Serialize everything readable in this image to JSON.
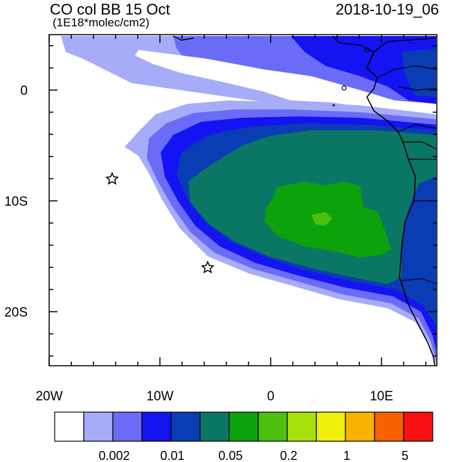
{
  "header": {
    "title": "CO col BB 15 Oct",
    "units": "(1E18*molec/cm2)",
    "datetime": "2018-10-19_06"
  },
  "axes": {
    "x_ticks": [
      "20W",
      "10W",
      "0",
      "10E"
    ],
    "y_ticks": [
      "0",
      "10S",
      "20S"
    ]
  },
  "colorbar": {
    "colors": [
      "#ffffff",
      "#a6acf8",
      "#6a6cf8",
      "#1414f2",
      "#0a3cb4",
      "#0a7764",
      "#0ca20c",
      "#4cc00c",
      "#a8e00c",
      "#f0f00c",
      "#f8b200",
      "#f86000",
      "#f81010"
    ],
    "labels": [
      "0.002",
      "0.01",
      "0.05",
      "0.2",
      "1",
      "5"
    ]
  },
  "markers": {
    "stars": [
      "station-star-north",
      "station-star-south"
    ]
  }
}
